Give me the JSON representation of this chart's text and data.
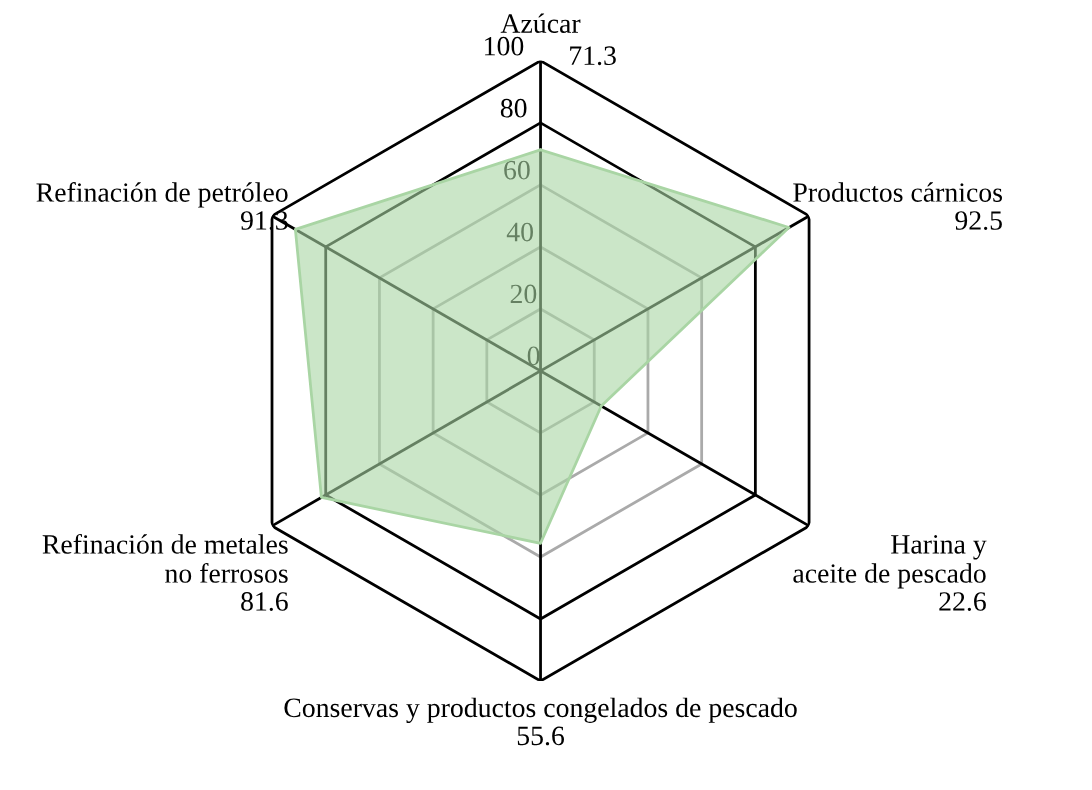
{
  "chart_data": {
    "type": "radar",
    "categories": [
      "Azúcar",
      "Productos cárnicos",
      "Harina y\naceite de pescado",
      "Conservas y productos congelados de pescado",
      "Refinación de metales\nno ferrosos",
      "Refinación de petróleo"
    ],
    "series": [
      {
        "color": "#a9d5a4",
        "values": [
          71.3,
          92.5,
          22.6,
          55.6,
          81.6,
          91.3
        ]
      }
    ],
    "annotations": [
      "71.3",
      "92.5",
      "22.6",
      "55.6",
      "81.6",
      "91.3"
    ],
    "ylim": [
      0,
      100
    ],
    "yticks": [
      0,
      20,
      40,
      60,
      80,
      100
    ],
    "legend": false
  }
}
